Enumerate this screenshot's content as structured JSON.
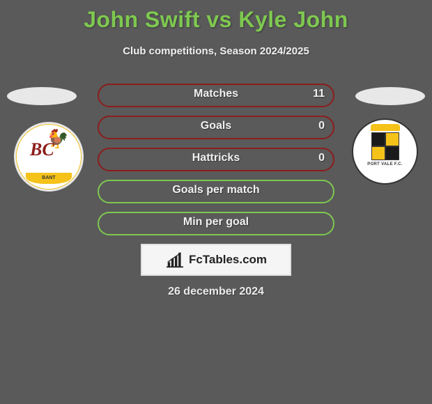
{
  "title": "John Swift vs Kyle John",
  "subtitle": "Club competitions, Season 2024/2025",
  "stats": [
    {
      "label": "Matches",
      "value_right": "11",
      "border_color": "#8c1d1d",
      "show_value": true
    },
    {
      "label": "Goals",
      "value_right": "0",
      "border_color": "#8c1d1d",
      "show_value": true
    },
    {
      "label": "Hattricks",
      "value_right": "0",
      "border_color": "#8c1d1d",
      "show_value": true
    },
    {
      "label": "Goals per match",
      "value_right": "",
      "border_color": "#7ec850",
      "show_value": false
    },
    {
      "label": "Min per goal",
      "value_right": "",
      "border_color": "#7ec850",
      "show_value": false
    }
  ],
  "left_club": {
    "name": "Bradford City",
    "initials": "BC",
    "banner": "BANT"
  },
  "right_club": {
    "name": "Port Vale",
    "label": "PORT VALE F.C."
  },
  "brand": {
    "text": "FcTables.com"
  },
  "date": "26 december 2024",
  "colors": {
    "title": "#7ec850",
    "background": "#5a5a5a",
    "text_light": "#f0f0f0",
    "pill_red": "#8c1d1d",
    "pill_green": "#7ec850",
    "brand_box_bg": "#f5f5f5",
    "brand_box_border": "#e0e0e0"
  }
}
